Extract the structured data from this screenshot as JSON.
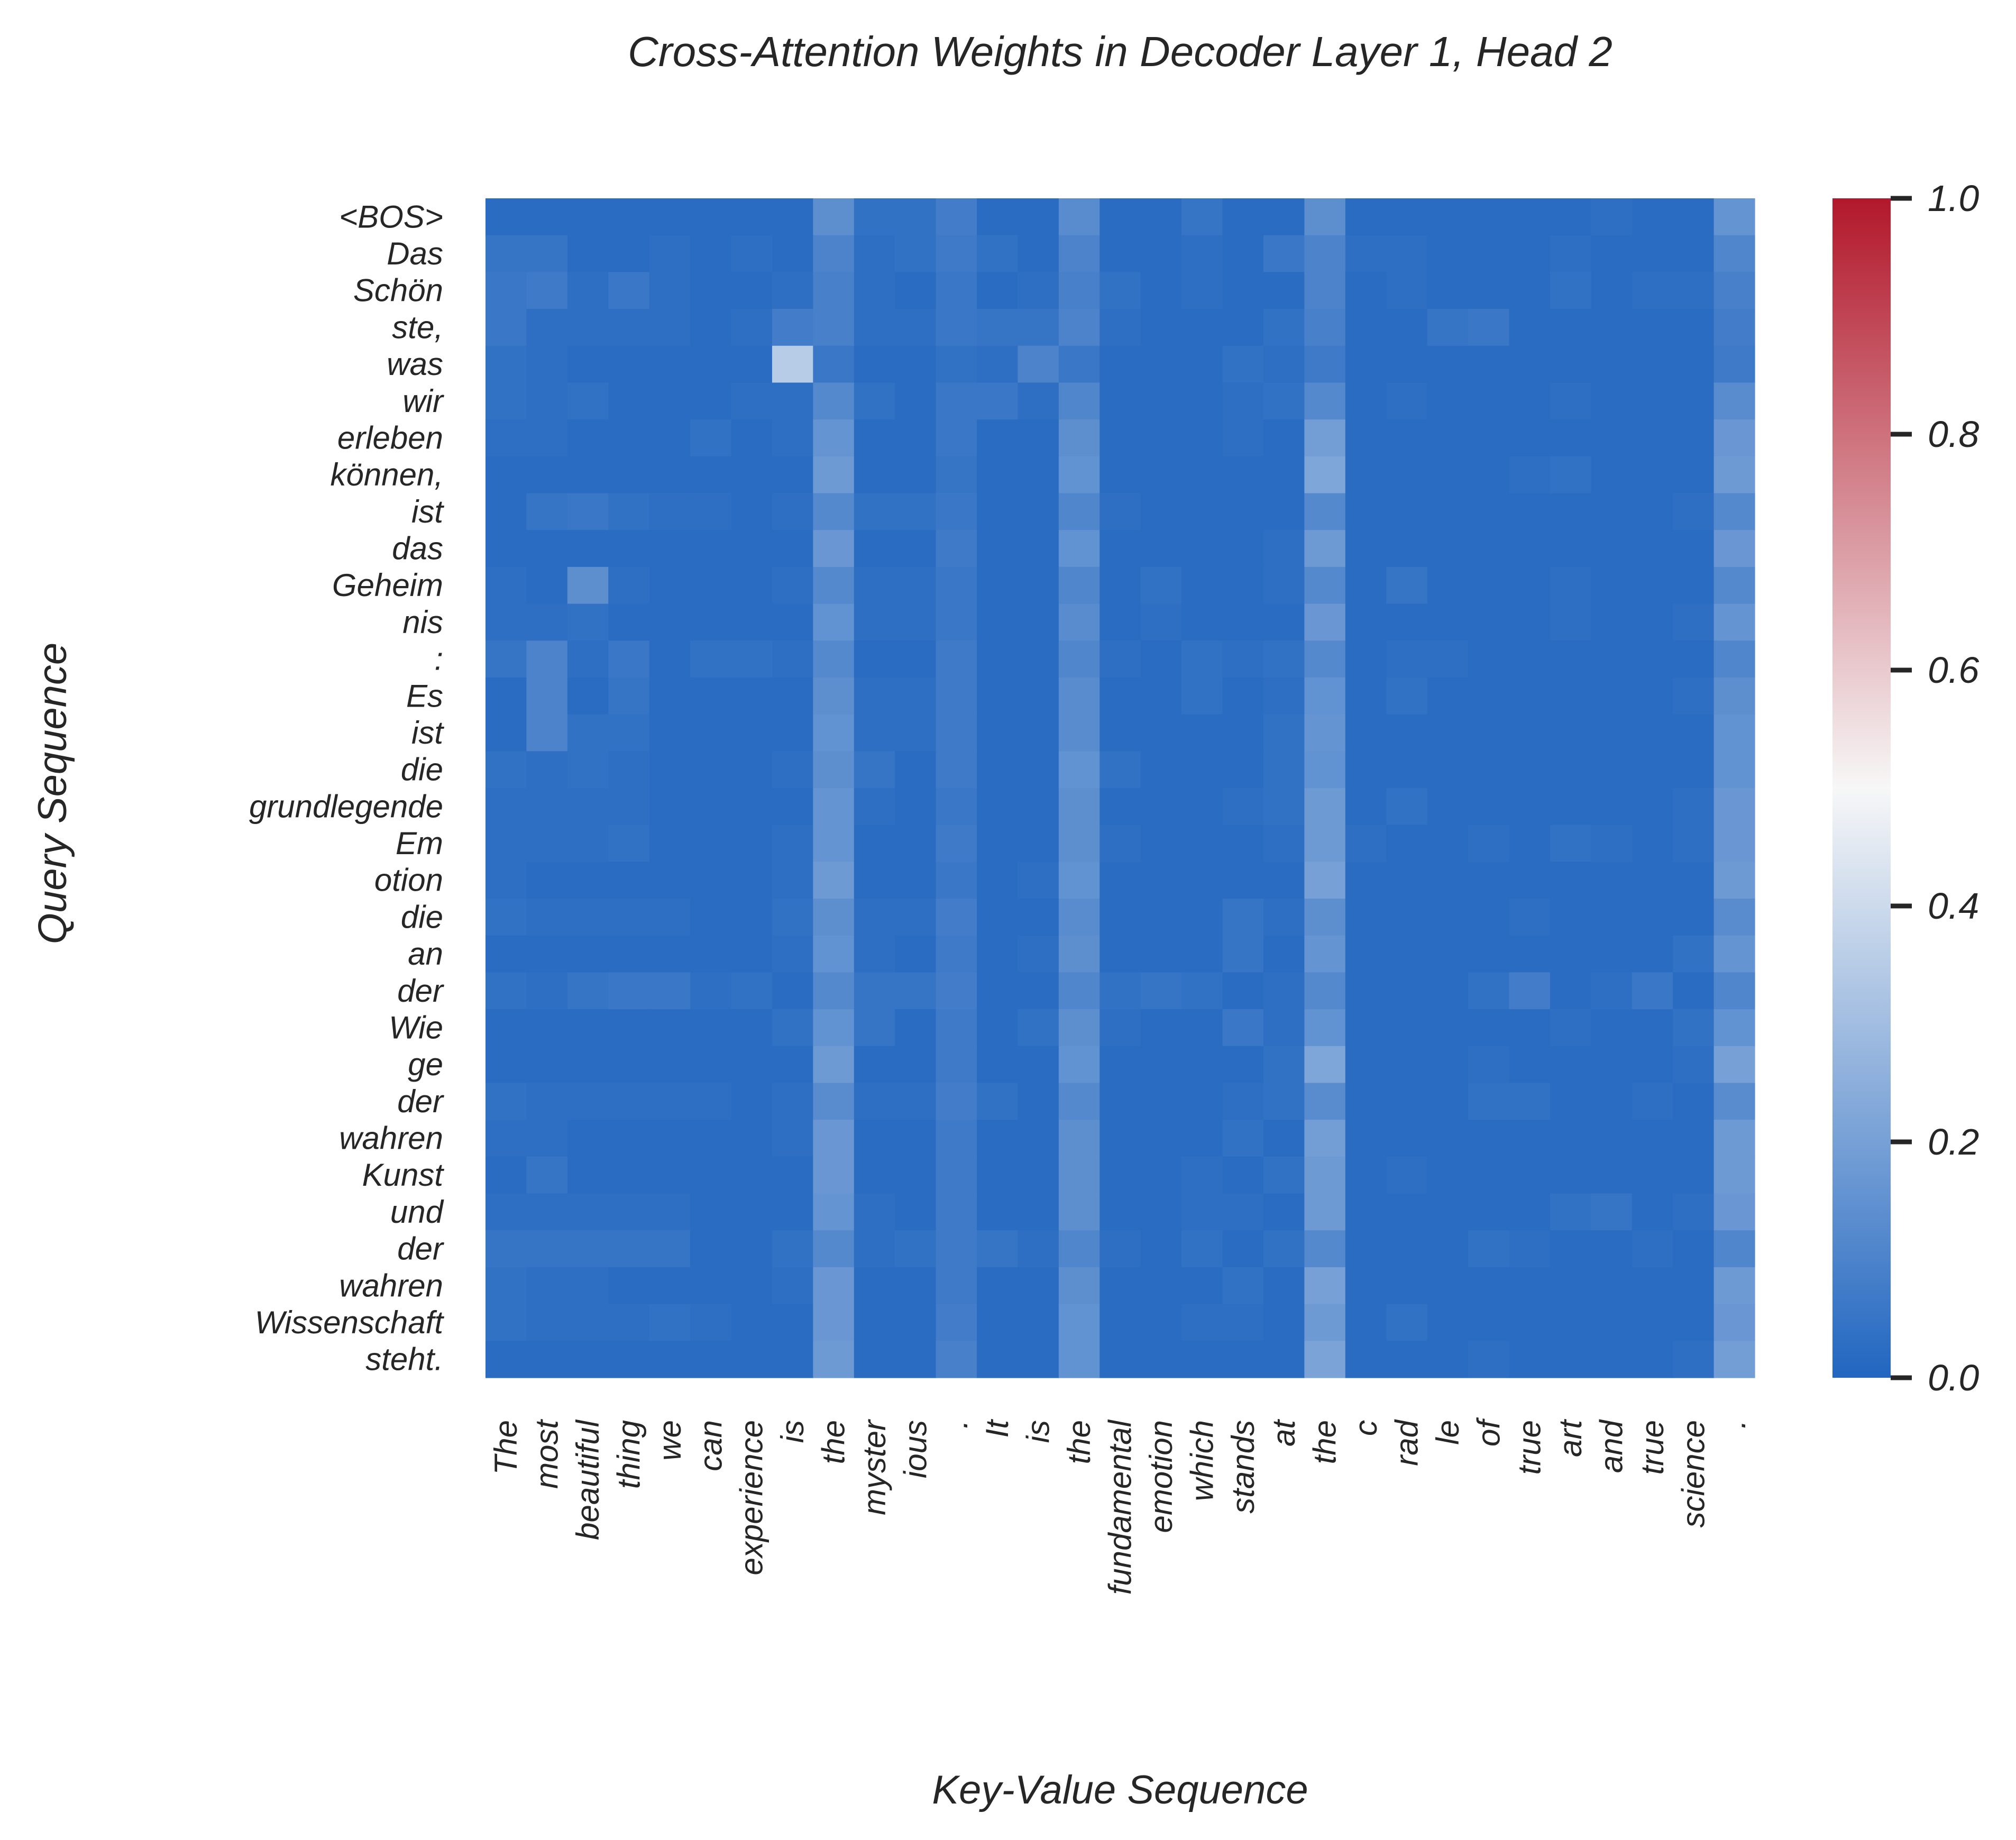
{
  "chart_data": {
    "type": "heatmap",
    "title": "Cross-Attention Weights in Decoder Layer 1, Head 2",
    "xlabel": "Key-Value Sequence",
    "ylabel": "Query Sequence",
    "x_tokens": [
      "The",
      "most",
      "beautiful",
      "thing",
      "we",
      "can",
      "experience",
      "is",
      "the",
      "myster",
      "ious",
      ".",
      "It",
      "is",
      "the",
      "fundamental",
      "emotion",
      "which",
      "stands",
      "at",
      "the",
      "c",
      "rad",
      "le",
      "of",
      "true",
      "art",
      "and",
      "true",
      "science",
      "."
    ],
    "y_tokens": [
      "<BOS>",
      "Das",
      "Schön",
      "ste,",
      "was",
      "wir",
      "erleben",
      "können,",
      "ist",
      "das",
      "Geheim",
      "nis",
      ":",
      "Es",
      "ist",
      "die",
      "grundlegende",
      "Em",
      "otion",
      "die",
      "an",
      "der",
      "Wie",
      "ge",
      "der",
      "wahren",
      "Kunst",
      "und",
      "der",
      "wahren",
      "Wissenschaft",
      "steht."
    ],
    "colorbar": {
      "min": 0.0,
      "max": 1.0,
      "ticks": [
        "0.0",
        "0.2",
        "0.4",
        "0.6",
        "0.8",
        "1.0"
      ]
    },
    "colormap": [
      "#2166c0",
      "#f7f7f7",
      "#b2182b"
    ],
    "values": [
      [
        0.02,
        0.02,
        0.02,
        0.02,
        0.02,
        0.02,
        0.02,
        0.02,
        0.14,
        0.04,
        0.04,
        0.08,
        0.02,
        0.02,
        0.13,
        0.02,
        0.02,
        0.05,
        0.02,
        0.02,
        0.14,
        0.02,
        0.02,
        0.02,
        0.02,
        0.02,
        0.02,
        0.03,
        0.02,
        0.02,
        0.16
      ],
      [
        0.05,
        0.05,
        0.02,
        0.02,
        0.03,
        0.02,
        0.03,
        0.02,
        0.1,
        0.03,
        0.04,
        0.07,
        0.04,
        0.02,
        0.1,
        0.02,
        0.02,
        0.03,
        0.02,
        0.06,
        0.1,
        0.03,
        0.03,
        0.02,
        0.02,
        0.02,
        0.03,
        0.02,
        0.02,
        0.02,
        0.11
      ],
      [
        0.06,
        0.07,
        0.03,
        0.06,
        0.03,
        0.02,
        0.02,
        0.03,
        0.09,
        0.03,
        0.02,
        0.06,
        0.02,
        0.03,
        0.09,
        0.04,
        0.02,
        0.03,
        0.02,
        0.02,
        0.1,
        0.02,
        0.03,
        0.02,
        0.02,
        0.02,
        0.04,
        0.02,
        0.03,
        0.03,
        0.09
      ],
      [
        0.06,
        0.03,
        0.03,
        0.03,
        0.03,
        0.02,
        0.03,
        0.08,
        0.09,
        0.03,
        0.03,
        0.06,
        0.05,
        0.05,
        0.1,
        0.03,
        0.02,
        0.02,
        0.02,
        0.04,
        0.09,
        0.02,
        0.02,
        0.05,
        0.06,
        0.02,
        0.02,
        0.02,
        0.02,
        0.02,
        0.08
      ],
      [
        0.04,
        0.03,
        0.02,
        0.02,
        0.02,
        0.02,
        0.02,
        0.35,
        0.06,
        0.02,
        0.02,
        0.04,
        0.03,
        0.1,
        0.06,
        0.02,
        0.02,
        0.02,
        0.04,
        0.03,
        0.07,
        0.02,
        0.02,
        0.02,
        0.02,
        0.02,
        0.02,
        0.02,
        0.02,
        0.02,
        0.07
      ],
      [
        0.04,
        0.03,
        0.04,
        0.02,
        0.02,
        0.02,
        0.03,
        0.03,
        0.12,
        0.04,
        0.02,
        0.06,
        0.06,
        0.03,
        0.11,
        0.02,
        0.02,
        0.02,
        0.03,
        0.04,
        0.12,
        0.02,
        0.03,
        0.02,
        0.02,
        0.02,
        0.03,
        0.02,
        0.02,
        0.02,
        0.13
      ],
      [
        0.03,
        0.03,
        0.02,
        0.02,
        0.02,
        0.04,
        0.02,
        0.03,
        0.16,
        0.02,
        0.02,
        0.06,
        0.02,
        0.02,
        0.14,
        0.02,
        0.02,
        0.02,
        0.03,
        0.02,
        0.19,
        0.02,
        0.02,
        0.02,
        0.02,
        0.02,
        0.02,
        0.02,
        0.02,
        0.02,
        0.17
      ],
      [
        0.02,
        0.02,
        0.02,
        0.02,
        0.02,
        0.02,
        0.02,
        0.02,
        0.18,
        0.02,
        0.02,
        0.05,
        0.02,
        0.02,
        0.15,
        0.02,
        0.02,
        0.02,
        0.02,
        0.02,
        0.22,
        0.02,
        0.02,
        0.02,
        0.02,
        0.03,
        0.04,
        0.02,
        0.02,
        0.02,
        0.18
      ],
      [
        0.02,
        0.05,
        0.06,
        0.04,
        0.03,
        0.03,
        0.02,
        0.03,
        0.12,
        0.04,
        0.04,
        0.06,
        0.02,
        0.02,
        0.11,
        0.03,
        0.02,
        0.02,
        0.02,
        0.02,
        0.12,
        0.02,
        0.02,
        0.02,
        0.02,
        0.02,
        0.02,
        0.02,
        0.02,
        0.03,
        0.12
      ],
      [
        0.02,
        0.02,
        0.02,
        0.02,
        0.02,
        0.02,
        0.02,
        0.02,
        0.17,
        0.02,
        0.02,
        0.07,
        0.02,
        0.02,
        0.15,
        0.02,
        0.02,
        0.02,
        0.02,
        0.03,
        0.18,
        0.02,
        0.02,
        0.02,
        0.02,
        0.02,
        0.02,
        0.02,
        0.02,
        0.02,
        0.17
      ],
      [
        0.03,
        0.02,
        0.14,
        0.03,
        0.02,
        0.02,
        0.02,
        0.03,
        0.12,
        0.03,
        0.03,
        0.06,
        0.02,
        0.02,
        0.11,
        0.02,
        0.04,
        0.02,
        0.02,
        0.03,
        0.12,
        0.02,
        0.05,
        0.02,
        0.02,
        0.02,
        0.03,
        0.02,
        0.02,
        0.02,
        0.12
      ],
      [
        0.03,
        0.03,
        0.04,
        0.02,
        0.02,
        0.02,
        0.02,
        0.02,
        0.15,
        0.03,
        0.03,
        0.06,
        0.02,
        0.02,
        0.13,
        0.02,
        0.03,
        0.02,
        0.02,
        0.02,
        0.17,
        0.02,
        0.02,
        0.02,
        0.02,
        0.02,
        0.03,
        0.02,
        0.02,
        0.03,
        0.16
      ],
      [
        0.05,
        0.1,
        0.03,
        0.06,
        0.02,
        0.04,
        0.04,
        0.03,
        0.12,
        0.02,
        0.02,
        0.07,
        0.02,
        0.02,
        0.11,
        0.03,
        0.02,
        0.04,
        0.03,
        0.04,
        0.12,
        0.02,
        0.03,
        0.03,
        0.02,
        0.02,
        0.02,
        0.02,
        0.02,
        0.02,
        0.11
      ],
      [
        0.02,
        0.1,
        0.02,
        0.05,
        0.02,
        0.02,
        0.02,
        0.02,
        0.14,
        0.03,
        0.03,
        0.07,
        0.02,
        0.02,
        0.13,
        0.02,
        0.02,
        0.04,
        0.02,
        0.03,
        0.15,
        0.02,
        0.04,
        0.02,
        0.02,
        0.02,
        0.02,
        0.02,
        0.02,
        0.03,
        0.14
      ],
      [
        0.02,
        0.1,
        0.04,
        0.04,
        0.02,
        0.02,
        0.02,
        0.02,
        0.15,
        0.03,
        0.03,
        0.07,
        0.02,
        0.02,
        0.13,
        0.02,
        0.02,
        0.02,
        0.02,
        0.04,
        0.16,
        0.02,
        0.02,
        0.02,
        0.02,
        0.02,
        0.02,
        0.02,
        0.02,
        0.02,
        0.15
      ],
      [
        0.04,
        0.03,
        0.04,
        0.03,
        0.02,
        0.02,
        0.02,
        0.03,
        0.14,
        0.05,
        0.02,
        0.07,
        0.02,
        0.02,
        0.15,
        0.04,
        0.02,
        0.02,
        0.02,
        0.04,
        0.15,
        0.02,
        0.02,
        0.02,
        0.02,
        0.02,
        0.02,
        0.02,
        0.02,
        0.02,
        0.15
      ],
      [
        0.03,
        0.03,
        0.03,
        0.03,
        0.02,
        0.02,
        0.02,
        0.02,
        0.16,
        0.03,
        0.02,
        0.06,
        0.02,
        0.02,
        0.14,
        0.02,
        0.02,
        0.02,
        0.03,
        0.04,
        0.18,
        0.02,
        0.04,
        0.02,
        0.02,
        0.02,
        0.02,
        0.02,
        0.02,
        0.03,
        0.17
      ],
      [
        0.03,
        0.03,
        0.03,
        0.04,
        0.02,
        0.02,
        0.02,
        0.03,
        0.16,
        0.02,
        0.02,
        0.07,
        0.02,
        0.02,
        0.14,
        0.03,
        0.02,
        0.02,
        0.02,
        0.03,
        0.18,
        0.03,
        0.02,
        0.02,
        0.03,
        0.02,
        0.04,
        0.03,
        0.02,
        0.03,
        0.17
      ],
      [
        0.03,
        0.02,
        0.02,
        0.02,
        0.02,
        0.02,
        0.02,
        0.03,
        0.18,
        0.02,
        0.02,
        0.06,
        0.02,
        0.03,
        0.15,
        0.02,
        0.02,
        0.02,
        0.02,
        0.02,
        0.2,
        0.02,
        0.02,
        0.02,
        0.02,
        0.02,
        0.02,
        0.02,
        0.02,
        0.02,
        0.18
      ],
      [
        0.04,
        0.03,
        0.03,
        0.03,
        0.03,
        0.02,
        0.02,
        0.04,
        0.14,
        0.03,
        0.03,
        0.08,
        0.02,
        0.02,
        0.13,
        0.02,
        0.02,
        0.02,
        0.05,
        0.03,
        0.14,
        0.02,
        0.02,
        0.02,
        0.02,
        0.03,
        0.02,
        0.02,
        0.02,
        0.02,
        0.13
      ],
      [
        0.02,
        0.02,
        0.02,
        0.02,
        0.02,
        0.02,
        0.02,
        0.03,
        0.15,
        0.03,
        0.02,
        0.07,
        0.02,
        0.03,
        0.14,
        0.02,
        0.02,
        0.02,
        0.05,
        0.02,
        0.16,
        0.02,
        0.02,
        0.02,
        0.02,
        0.02,
        0.02,
        0.02,
        0.02,
        0.04,
        0.16
      ],
      [
        0.04,
        0.03,
        0.05,
        0.06,
        0.06,
        0.03,
        0.04,
        0.02,
        0.12,
        0.05,
        0.05,
        0.08,
        0.02,
        0.02,
        0.11,
        0.04,
        0.05,
        0.04,
        0.02,
        0.03,
        0.12,
        0.02,
        0.02,
        0.02,
        0.04,
        0.08,
        0.02,
        0.03,
        0.06,
        0.02,
        0.11
      ],
      [
        0.02,
        0.02,
        0.02,
        0.02,
        0.02,
        0.02,
        0.02,
        0.04,
        0.15,
        0.05,
        0.02,
        0.07,
        0.02,
        0.04,
        0.14,
        0.03,
        0.02,
        0.02,
        0.06,
        0.03,
        0.15,
        0.02,
        0.02,
        0.02,
        0.02,
        0.02,
        0.03,
        0.02,
        0.02,
        0.04,
        0.15
      ],
      [
        0.02,
        0.02,
        0.02,
        0.02,
        0.02,
        0.02,
        0.02,
        0.02,
        0.18,
        0.02,
        0.02,
        0.07,
        0.02,
        0.02,
        0.15,
        0.02,
        0.02,
        0.02,
        0.02,
        0.04,
        0.22,
        0.02,
        0.02,
        0.02,
        0.03,
        0.02,
        0.02,
        0.02,
        0.02,
        0.03,
        0.2
      ],
      [
        0.04,
        0.03,
        0.03,
        0.03,
        0.03,
        0.03,
        0.02,
        0.03,
        0.13,
        0.03,
        0.03,
        0.08,
        0.04,
        0.02,
        0.12,
        0.02,
        0.02,
        0.02,
        0.03,
        0.04,
        0.13,
        0.02,
        0.02,
        0.02,
        0.04,
        0.04,
        0.02,
        0.02,
        0.03,
        0.02,
        0.13
      ],
      [
        0.03,
        0.03,
        0.02,
        0.02,
        0.02,
        0.02,
        0.02,
        0.03,
        0.17,
        0.02,
        0.02,
        0.07,
        0.02,
        0.02,
        0.14,
        0.02,
        0.02,
        0.02,
        0.04,
        0.02,
        0.19,
        0.02,
        0.02,
        0.02,
        0.02,
        0.02,
        0.02,
        0.02,
        0.02,
        0.02,
        0.18
      ],
      [
        0.02,
        0.05,
        0.02,
        0.02,
        0.02,
        0.02,
        0.02,
        0.02,
        0.17,
        0.02,
        0.02,
        0.07,
        0.02,
        0.02,
        0.14,
        0.02,
        0.02,
        0.03,
        0.02,
        0.04,
        0.18,
        0.02,
        0.03,
        0.02,
        0.02,
        0.02,
        0.02,
        0.02,
        0.02,
        0.02,
        0.18
      ],
      [
        0.03,
        0.03,
        0.03,
        0.03,
        0.03,
        0.02,
        0.02,
        0.02,
        0.16,
        0.03,
        0.02,
        0.07,
        0.02,
        0.02,
        0.14,
        0.02,
        0.02,
        0.03,
        0.03,
        0.02,
        0.18,
        0.02,
        0.02,
        0.02,
        0.02,
        0.02,
        0.04,
        0.05,
        0.02,
        0.03,
        0.17
      ],
      [
        0.05,
        0.05,
        0.05,
        0.05,
        0.05,
        0.02,
        0.02,
        0.04,
        0.12,
        0.03,
        0.04,
        0.07,
        0.05,
        0.03,
        0.11,
        0.03,
        0.02,
        0.04,
        0.02,
        0.04,
        0.12,
        0.02,
        0.02,
        0.02,
        0.04,
        0.03,
        0.02,
        0.02,
        0.03,
        0.02,
        0.11
      ],
      [
        0.04,
        0.03,
        0.03,
        0.02,
        0.02,
        0.02,
        0.02,
        0.03,
        0.17,
        0.02,
        0.02,
        0.07,
        0.02,
        0.02,
        0.14,
        0.02,
        0.02,
        0.02,
        0.04,
        0.02,
        0.2,
        0.02,
        0.02,
        0.02,
        0.02,
        0.02,
        0.02,
        0.02,
        0.02,
        0.02,
        0.18
      ],
      [
        0.04,
        0.03,
        0.03,
        0.03,
        0.04,
        0.03,
        0.02,
        0.02,
        0.17,
        0.02,
        0.02,
        0.08,
        0.02,
        0.02,
        0.15,
        0.02,
        0.02,
        0.03,
        0.03,
        0.02,
        0.18,
        0.02,
        0.04,
        0.02,
        0.02,
        0.02,
        0.02,
        0.02,
        0.02,
        0.02,
        0.17
      ],
      [
        0.02,
        0.02,
        0.02,
        0.02,
        0.02,
        0.02,
        0.02,
        0.02,
        0.18,
        0.02,
        0.02,
        0.09,
        0.02,
        0.02,
        0.15,
        0.02,
        0.02,
        0.02,
        0.02,
        0.02,
        0.21,
        0.02,
        0.02,
        0.02,
        0.03,
        0.02,
        0.02,
        0.02,
        0.02,
        0.03,
        0.19
      ]
    ]
  }
}
